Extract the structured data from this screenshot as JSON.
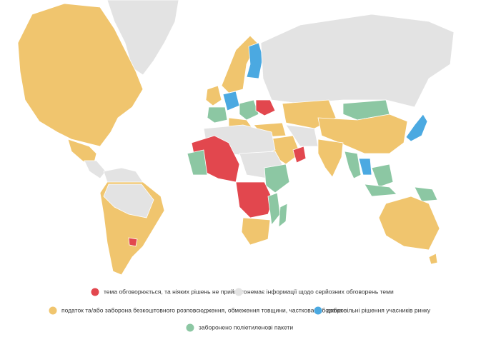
{
  "legend": {
    "items": [
      {
        "label": "тема обговорюється, та ніяких рішень не прийнято",
        "color": "#e2474e"
      },
      {
        "label": "немає інформації щодо серйозних обговорень теми",
        "color": "#e3e3e3"
      },
      {
        "label": "податок та/або заборона безкоштовного розповсюдження, обмеження товщини, часткова заборона",
        "color": "#f0c56e"
      },
      {
        "label": "добровільні рішення учасників ринку",
        "color": "#4ba9e1"
      },
      {
        "label": "заборонено поліетиленові пакети",
        "color": "#8cc7a3"
      }
    ]
  }
}
